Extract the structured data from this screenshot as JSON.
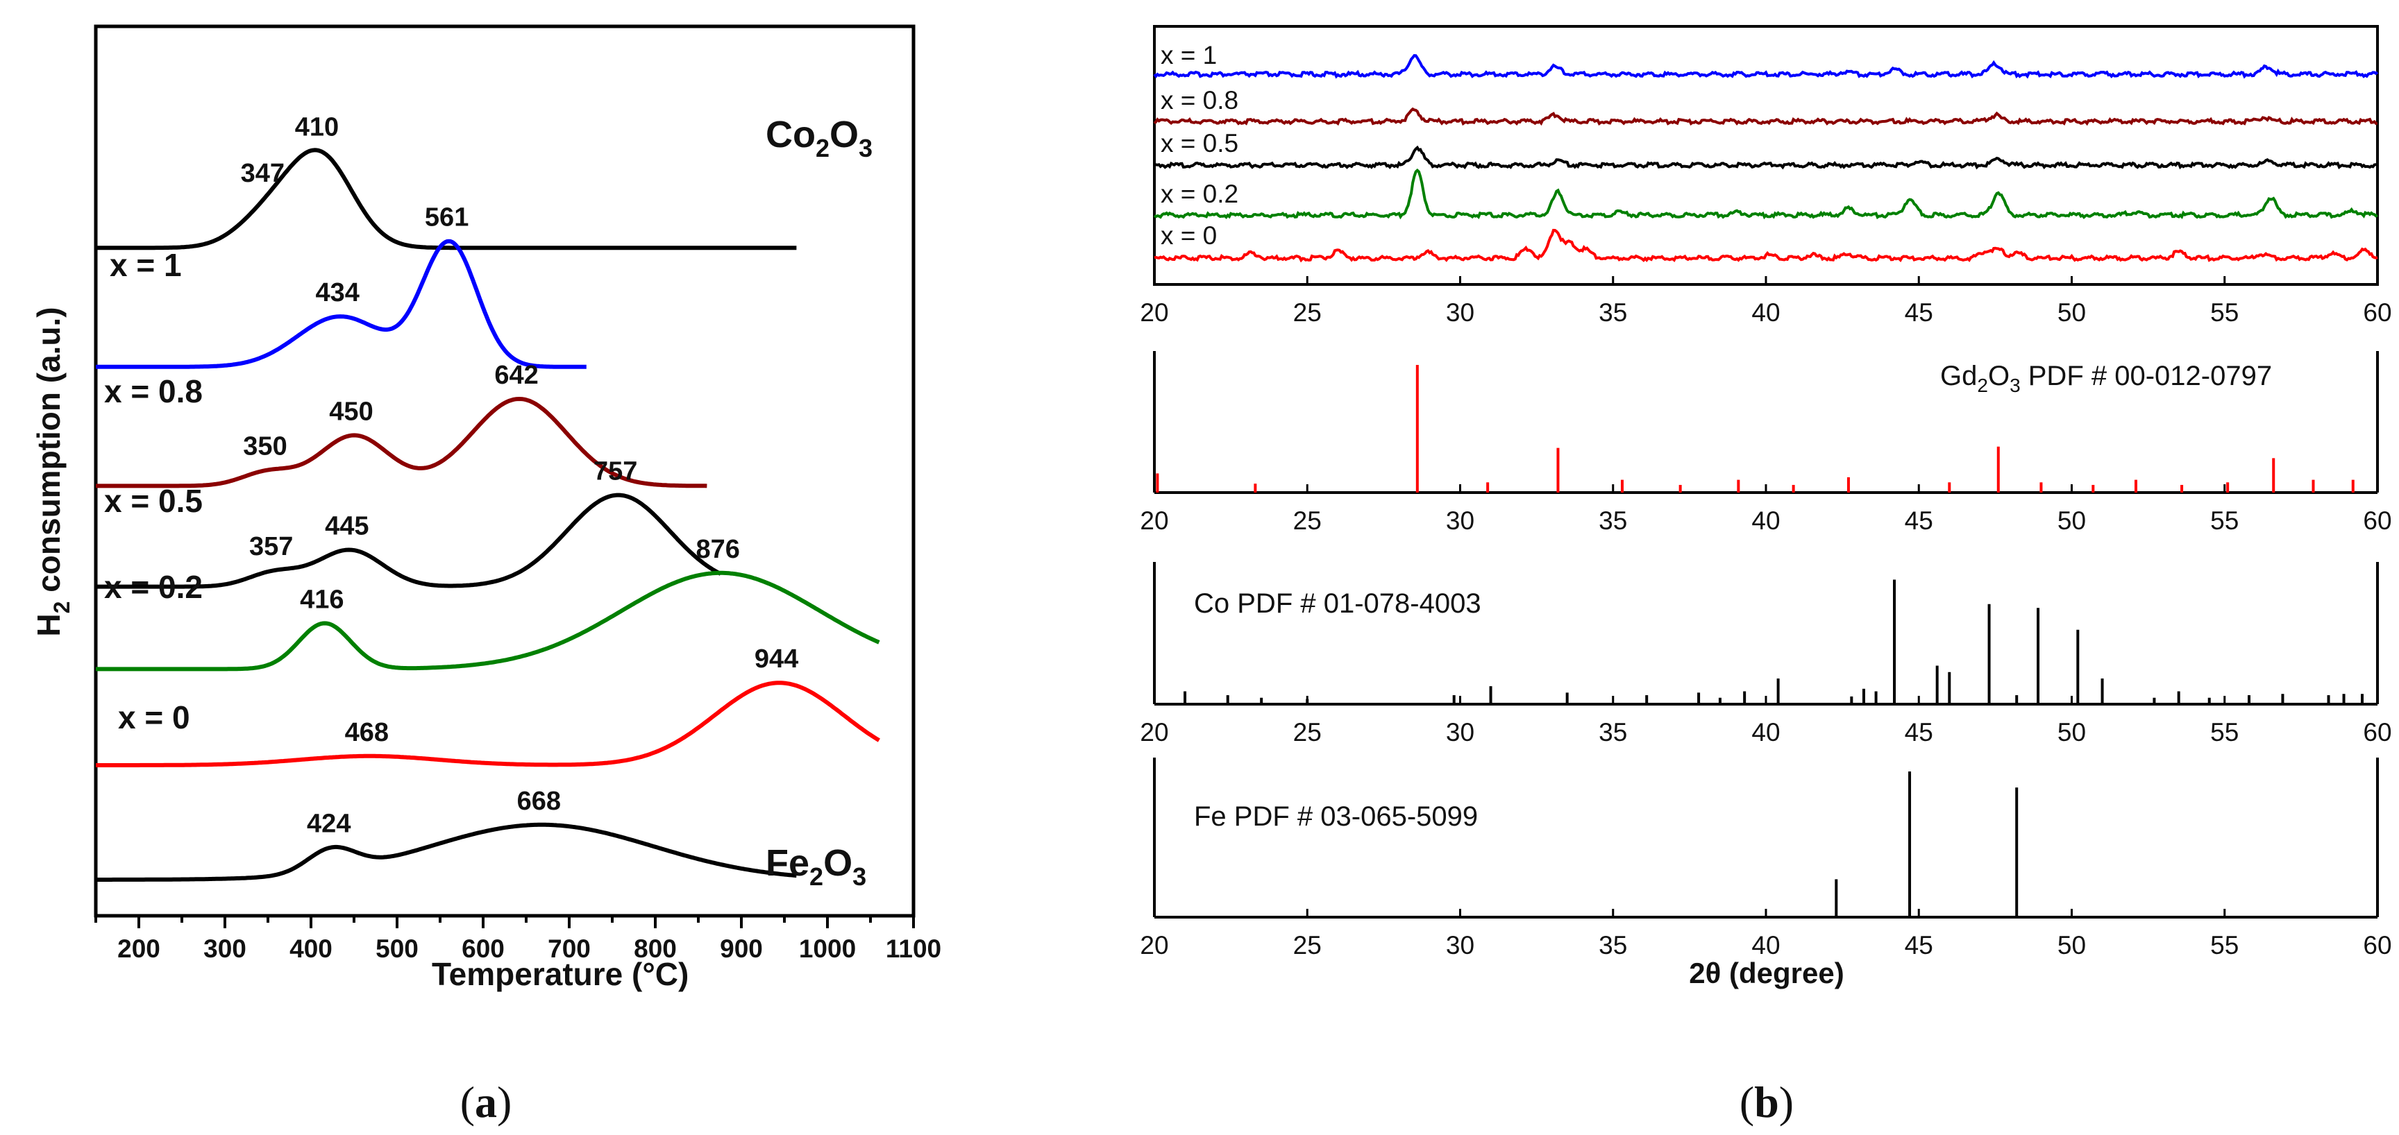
{
  "captions": {
    "a": "(a)",
    "b": "(b)"
  },
  "chart_data": [
    {
      "type": "line",
      "panel": "a",
      "title": "",
      "xlabel": "Temperature (°C)",
      "ylabel": "H2 consumption (a.u.)",
      "ylabel_parts": {
        "pre": "H",
        "sub": "2",
        "post": " consumption (a.u.)"
      },
      "xlim": [
        150,
        1100
      ],
      "xticks": [
        200,
        300,
        400,
        500,
        600,
        700,
        800,
        900,
        1000,
        1100
      ],
      "series": [
        {
          "name": "Co2O3",
          "label_parts": {
            "a": "Co",
            "s1": "2",
            "b": "O",
            "s2": "3"
          },
          "color": "#000000",
          "baseline_offset": 6.9,
          "x_range": [
            150,
            965
          ],
          "peaks": [
            {
              "center": 347,
              "height": 0.3,
              "width": 35,
              "label": "347"
            },
            {
              "center": 410,
              "height": 1.0,
              "width": 38,
              "label": "410"
            }
          ]
        },
        {
          "name": "x = 1",
          "color": "#0000ff",
          "baseline_offset": 5.6,
          "x_range": [
            150,
            720
          ],
          "peaks": [
            {
              "center": 434,
              "height": 0.55,
              "width": 50,
              "label": "434"
            },
            {
              "center": 561,
              "height": 1.35,
              "width": 32,
              "label": "561"
            }
          ]
        },
        {
          "name": "x = 0.8",
          "color": "#8b0000",
          "baseline_offset": 4.3,
          "x_range": [
            150,
            860
          ],
          "peaks": [
            {
              "center": 350,
              "height": 0.15,
              "width": 30,
              "label": "350"
            },
            {
              "center": 450,
              "height": 0.55,
              "width": 40,
              "label": "450"
            },
            {
              "center": 642,
              "height": 0.95,
              "width": 55,
              "label": "642"
            }
          ]
        },
        {
          "name": "x = 0.5",
          "color": "#000000",
          "baseline_offset": 3.2,
          "x_range": [
            150,
            876
          ],
          "peaks": [
            {
              "center": 357,
              "height": 0.15,
              "width": 30,
              "label": "357"
            },
            {
              "center": 445,
              "height": 0.4,
              "width": 38,
              "label": "445"
            },
            {
              "center": 757,
              "height": 1.0,
              "width": 60,
              "label": "757"
            }
          ]
        },
        {
          "name": "x = 0.2",
          "color": "#008000",
          "baseline_offset": 2.3,
          "x_range": [
            150,
            1060
          ],
          "peaks": [
            {
              "center": 416,
              "height": 0.5,
              "width": 30,
              "label": "416"
            },
            {
              "center": 876,
              "height": 1.05,
              "width": 115,
              "label": "876"
            }
          ]
        },
        {
          "name": "x = 0",
          "color": "#ff0000",
          "baseline_offset": 1.25,
          "x_range": [
            150,
            1060
          ],
          "peaks": [
            {
              "center": 468,
              "height": 0.1,
              "width": 80,
              "label": "468"
            },
            {
              "center": 944,
              "height": 0.9,
              "width": 75,
              "label": "944"
            }
          ]
        },
        {
          "name": "Fe2O3",
          "label_parts": {
            "a": "Fe",
            "s1": "2",
            "b": "O",
            "s2": "3"
          },
          "color": "#000000",
          "baseline_offset": 0.0,
          "x_range": [
            150,
            965
          ],
          "peaks": [
            {
              "center": 424,
              "height": 0.25,
              "width": 28,
              "label": "424"
            },
            {
              "center": 668,
              "height": 0.6,
              "width": 130,
              "label": "668"
            }
          ]
        }
      ]
    },
    {
      "type": "line",
      "panel": "b-top",
      "title": "",
      "xlabel": "",
      "xlim": [
        20,
        60
      ],
      "xticks": [
        20,
        25,
        30,
        35,
        40,
        45,
        50,
        55,
        60
      ],
      "series": [
        {
          "name": "x = 1",
          "color": "#0000ff",
          "peaks": [
            {
              "pos": 28.5,
              "h": 0.9
            },
            {
              "pos": 33.1,
              "h": 0.35
            },
            {
              "pos": 42.6,
              "h": 0.12
            },
            {
              "pos": 44.2,
              "h": 0.25
            },
            {
              "pos": 47.5,
              "h": 0.5
            },
            {
              "pos": 56.4,
              "h": 0.35
            }
          ]
        },
        {
          "name": "x = 0.8",
          "color": "#8b0000",
          "peaks": [
            {
              "pos": 28.5,
              "h": 0.55
            },
            {
              "pos": 33.1,
              "h": 0.3
            },
            {
              "pos": 47.5,
              "h": 0.3
            },
            {
              "pos": 56.3,
              "h": 0.2
            }
          ]
        },
        {
          "name": "x = 0.5",
          "color": "#000000",
          "peaks": [
            {
              "pos": 28.6,
              "h": 0.85
            },
            {
              "pos": 33.2,
              "h": 0.2
            },
            {
              "pos": 45.0,
              "h": 0.18
            },
            {
              "pos": 47.6,
              "h": 0.3
            },
            {
              "pos": 56.5,
              "h": 0.2
            }
          ]
        },
        {
          "name": "x = 0.2",
          "color": "#008000",
          "peaks": [
            {
              "pos": 28.6,
              "h": 2.1
            },
            {
              "pos": 33.2,
              "h": 1.1
            },
            {
              "pos": 35.2,
              "h": 0.12
            },
            {
              "pos": 39.1,
              "h": 0.12
            },
            {
              "pos": 42.7,
              "h": 0.3
            },
            {
              "pos": 44.7,
              "h": 0.75
            },
            {
              "pos": 47.6,
              "h": 1.1
            },
            {
              "pos": 52.0,
              "h": 0.12
            },
            {
              "pos": 56.5,
              "h": 0.85
            },
            {
              "pos": 59.2,
              "h": 0.2
            }
          ]
        },
        {
          "name": "x = 0",
          "color": "#ff0000",
          "peaks": [
            {
              "pos": 23.2,
              "h": 0.25
            },
            {
              "pos": 26.0,
              "h": 0.3
            },
            {
              "pos": 28.9,
              "h": 0.3
            },
            {
              "pos": 32.2,
              "h": 0.45
            },
            {
              "pos": 33.1,
              "h": 1.4
            },
            {
              "pos": 33.6,
              "h": 0.7
            },
            {
              "pos": 34.1,
              "h": 0.4
            },
            {
              "pos": 40.1,
              "h": 0.15
            },
            {
              "pos": 41.5,
              "h": 0.15
            },
            {
              "pos": 42.7,
              "h": 0.2
            },
            {
              "pos": 47.2,
              "h": 0.35
            },
            {
              "pos": 47.6,
              "h": 0.4
            },
            {
              "pos": 48.2,
              "h": 0.25
            },
            {
              "pos": 53.5,
              "h": 0.3
            },
            {
              "pos": 56.2,
              "h": 0.2
            },
            {
              "pos": 58.5,
              "h": 0.2
            },
            {
              "pos": 59.6,
              "h": 0.4
            }
          ]
        }
      ]
    },
    {
      "type": "bar",
      "panel": "b-Gd2O3",
      "reference_parts": {
        "a": "Gd",
        "s": "2",
        "b": "O",
        "s2": "3",
        "c": " PDF # 00-012-0797"
      },
      "color": "#ff0000",
      "xlim": [
        20,
        60
      ],
      "xticks": [
        20,
        25,
        30,
        35,
        40,
        45,
        50,
        55,
        60
      ],
      "peaks": [
        [
          20.1,
          0.15
        ],
        [
          23.3,
          0.07
        ],
        [
          28.6,
          1.0
        ],
        [
          30.9,
          0.08
        ],
        [
          33.2,
          0.35
        ],
        [
          35.3,
          0.1
        ],
        [
          37.2,
          0.06
        ],
        [
          39.1,
          0.1
        ],
        [
          40.9,
          0.06
        ],
        [
          42.7,
          0.12
        ],
        [
          46.0,
          0.08
        ],
        [
          47.6,
          0.36
        ],
        [
          49.0,
          0.08
        ],
        [
          50.7,
          0.06
        ],
        [
          52.1,
          0.1
        ],
        [
          53.6,
          0.06
        ],
        [
          55.1,
          0.08
        ],
        [
          56.6,
          0.27
        ],
        [
          57.9,
          0.1
        ],
        [
          59.2,
          0.1
        ]
      ]
    },
    {
      "type": "bar",
      "panel": "b-Co",
      "reference": "Co PDF # 01-078-4003",
      "color": "#000000",
      "xlim": [
        20,
        60
      ],
      "xticks": [
        20,
        25,
        30,
        35,
        40,
        45,
        50,
        55,
        60
      ],
      "peaks": [
        [
          21.0,
          0.1
        ],
        [
          22.4,
          0.07
        ],
        [
          23.5,
          0.05
        ],
        [
          25.0,
          0.04
        ],
        [
          29.8,
          0.07
        ],
        [
          31.0,
          0.14
        ],
        [
          33.5,
          0.09
        ],
        [
          36.1,
          0.07
        ],
        [
          37.8,
          0.09
        ],
        [
          38.5,
          0.05
        ],
        [
          39.3,
          0.1
        ],
        [
          40.4,
          0.2
        ],
        [
          42.8,
          0.06
        ],
        [
          43.2,
          0.12
        ],
        [
          43.6,
          0.1
        ],
        [
          44.2,
          0.97
        ],
        [
          45.6,
          0.3
        ],
        [
          46.0,
          0.25
        ],
        [
          47.3,
          0.78
        ],
        [
          48.2,
          0.07
        ],
        [
          48.9,
          0.75
        ],
        [
          50.2,
          0.58
        ],
        [
          51.0,
          0.2
        ],
        [
          52.7,
          0.05
        ],
        [
          53.5,
          0.1
        ],
        [
          54.5,
          0.05
        ],
        [
          55.8,
          0.07
        ],
        [
          56.9,
          0.08
        ],
        [
          58.4,
          0.07
        ],
        [
          58.9,
          0.08
        ],
        [
          59.5,
          0.08
        ]
      ]
    },
    {
      "type": "bar",
      "panel": "b-Fe",
      "reference": "Fe PDF # 03-065-5099",
      "color": "#000000",
      "xlim": [
        20,
        60
      ],
      "xticks": [
        20,
        25,
        30,
        35,
        40,
        45,
        50,
        55,
        60
      ],
      "xlabel": "2θ (degree)",
      "peaks": [
        [
          42.3,
          0.26
        ],
        [
          44.7,
          1.0
        ],
        [
          48.2,
          0.89
        ]
      ]
    }
  ]
}
